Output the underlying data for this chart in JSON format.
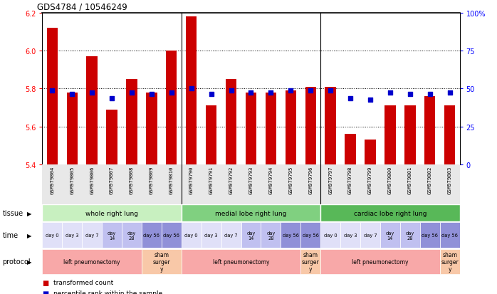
{
  "title": "GDS4784 / 10546249",
  "samples": [
    "GSM979804",
    "GSM979805",
    "GSM979806",
    "GSM979807",
    "GSM979808",
    "GSM979809",
    "GSM979810",
    "GSM979790",
    "GSM979791",
    "GSM979792",
    "GSM979793",
    "GSM979794",
    "GSM979795",
    "GSM979796",
    "GSM979797",
    "GSM979798",
    "GSM979799",
    "GSM979800",
    "GSM979801",
    "GSM979802",
    "GSM979803"
  ],
  "bar_values": [
    6.12,
    5.78,
    5.97,
    5.69,
    5.85,
    5.78,
    6.0,
    6.18,
    5.71,
    5.85,
    5.78,
    5.78,
    5.79,
    5.81,
    5.81,
    5.56,
    5.53,
    5.71,
    5.71,
    5.76,
    5.71
  ],
  "dot_values": [
    5.79,
    5.77,
    5.78,
    5.75,
    5.78,
    5.77,
    5.78,
    5.8,
    5.77,
    5.79,
    5.78,
    5.78,
    5.79,
    5.79,
    5.79,
    5.75,
    5.74,
    5.78,
    5.77,
    5.77,
    5.78
  ],
  "bar_color": "#cc0000",
  "dot_color": "#0000cc",
  "ymin": 5.4,
  "ymax": 6.2,
  "yticks": [
    5.4,
    5.6,
    5.8,
    6.0,
    6.2
  ],
  "ytick_labels": [
    "5.4",
    "5.6",
    "5.8",
    "6.0",
    "6.2"
  ],
  "y2ticks": [
    0,
    25,
    50,
    75,
    100
  ],
  "y2tick_labels": [
    "0",
    "25",
    "50",
    "75",
    "100%"
  ],
  "dotted_lines": [
    5.6,
    5.8,
    6.0
  ],
  "tissue_groups": [
    {
      "label": "whole right lung",
      "start": 0,
      "end": 7,
      "color": "#c8f0c0"
    },
    {
      "label": "medial lobe right lung",
      "start": 7,
      "end": 14,
      "color": "#80d080"
    },
    {
      "label": "cardiac lobe right lung",
      "start": 14,
      "end": 21,
      "color": "#58b858"
    }
  ],
  "time_data": [
    [
      0,
      "day 0",
      "#e0e0f8"
    ],
    [
      1,
      "day 3",
      "#e0e0f8"
    ],
    [
      2,
      "day 7",
      "#e0e0f8"
    ],
    [
      3,
      "day\n14",
      "#c0c0f0"
    ],
    [
      4,
      "day\n28",
      "#c0c0f0"
    ],
    [
      5,
      "day 56",
      "#9090d8"
    ],
    [
      6,
      "day 56",
      "#9090d8"
    ],
    [
      7,
      "day 0",
      "#e0e0f8"
    ],
    [
      8,
      "day 3",
      "#e0e0f8"
    ],
    [
      9,
      "day 7",
      "#e0e0f8"
    ],
    [
      10,
      "day\n14",
      "#c0c0f0"
    ],
    [
      11,
      "day\n28",
      "#c0c0f0"
    ],
    [
      12,
      "day 56",
      "#9090d8"
    ],
    [
      13,
      "day 56",
      "#9090d8"
    ],
    [
      14,
      "day 0",
      "#e0e0f8"
    ],
    [
      15,
      "day 3",
      "#e0e0f8"
    ],
    [
      16,
      "day 7",
      "#e0e0f8"
    ],
    [
      17,
      "day\n14",
      "#c0c0f0"
    ],
    [
      18,
      "day\n28",
      "#c0c0f0"
    ],
    [
      19,
      "day 56",
      "#9090d8"
    ],
    [
      20,
      "day 56",
      "#9090d8"
    ]
  ],
  "protocol_groups": [
    {
      "label": "left pneumonectomy",
      "start": 0,
      "end": 5,
      "color": "#f8a8a8"
    },
    {
      "label": "sham\nsurger\ny",
      "start": 5,
      "end": 7,
      "color": "#f8c8a8"
    },
    {
      "label": "left pneumonectomy",
      "start": 7,
      "end": 13,
      "color": "#f8a8a8"
    },
    {
      "label": "sham\nsurger\ny",
      "start": 13,
      "end": 14,
      "color": "#f8c8a8"
    },
    {
      "label": "left pneumonectomy",
      "start": 14,
      "end": 20,
      "color": "#f8a8a8"
    },
    {
      "label": "sham\nsurger\ny",
      "start": 20,
      "end": 21,
      "color": "#f8c8a8"
    }
  ]
}
